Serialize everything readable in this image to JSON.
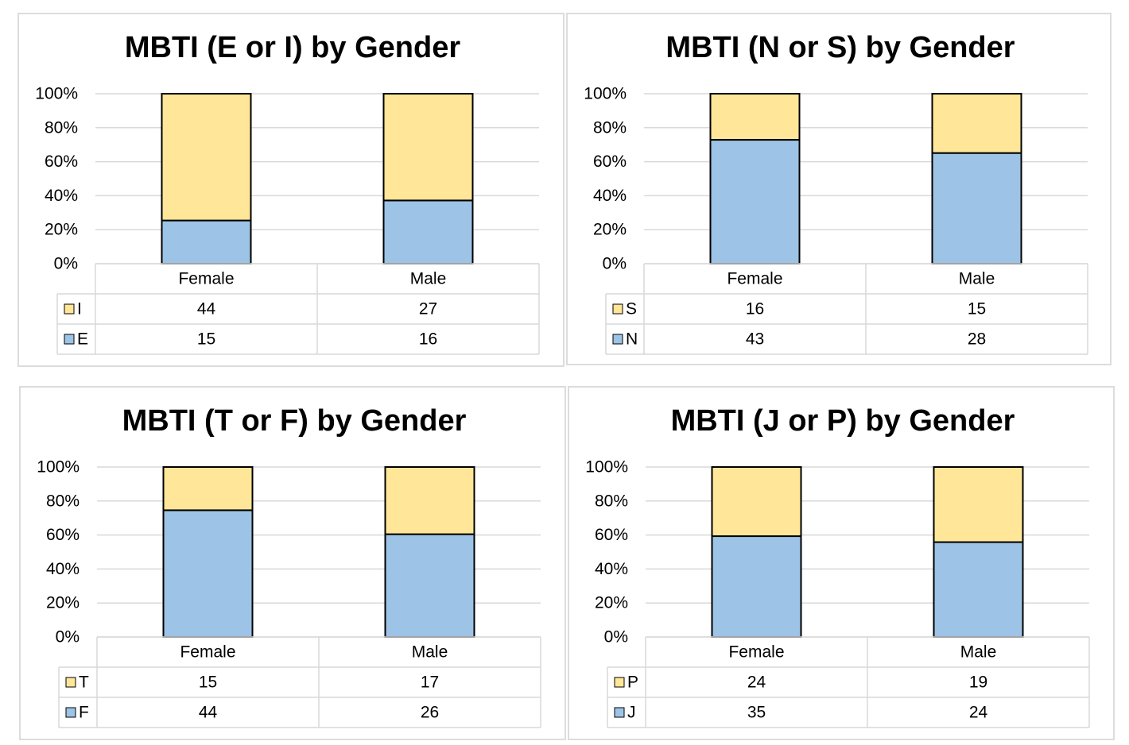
{
  "colors": {
    "top_series": "#FFE699",
    "bottom_series": "#9DC3E6",
    "bar_stroke": "#000000",
    "grid": "#d9d9d9"
  },
  "chart_data": [
    {
      "type": "bar",
      "stacking": "percent",
      "title": "MBTI (E or I) by Gender",
      "categories": [
        "Female",
        "Male"
      ],
      "y_ticks": [
        "0%",
        "20%",
        "40%",
        "60%",
        "80%",
        "100%"
      ],
      "ylim": [
        0,
        100
      ],
      "grid": true,
      "legend": "data-table",
      "series": [
        {
          "name": "I",
          "values": [
            44,
            27
          ]
        },
        {
          "name": "E",
          "values": [
            15,
            16
          ]
        }
      ]
    },
    {
      "type": "bar",
      "stacking": "percent",
      "title": "MBTI (N or S) by Gender",
      "categories": [
        "Female",
        "Male"
      ],
      "y_ticks": [
        "0%",
        "20%",
        "40%",
        "60%",
        "80%",
        "100%"
      ],
      "ylim": [
        0,
        100
      ],
      "grid": true,
      "legend": "data-table",
      "series": [
        {
          "name": "S",
          "values": [
            16,
            15
          ]
        },
        {
          "name": "N",
          "values": [
            43,
            28
          ]
        }
      ]
    },
    {
      "type": "bar",
      "stacking": "percent",
      "title": "MBTI (T or F) by Gender",
      "categories": [
        "Female",
        "Male"
      ],
      "y_ticks": [
        "0%",
        "20%",
        "40%",
        "60%",
        "80%",
        "100%"
      ],
      "ylim": [
        0,
        100
      ],
      "grid": true,
      "legend": "data-table",
      "series": [
        {
          "name": "T",
          "values": [
            15,
            17
          ]
        },
        {
          "name": "F",
          "values": [
            44,
            26
          ]
        }
      ]
    },
    {
      "type": "bar",
      "stacking": "percent",
      "title": "MBTI (J or P) by Gender",
      "categories": [
        "Female",
        "Male"
      ],
      "y_ticks": [
        "0%",
        "20%",
        "40%",
        "60%",
        "80%",
        "100%"
      ],
      "ylim": [
        0,
        100
      ],
      "grid": true,
      "legend": "data-table",
      "series": [
        {
          "name": "P",
          "values": [
            24,
            19
          ]
        },
        {
          "name": "J",
          "values": [
            35,
            24
          ]
        }
      ]
    }
  ]
}
